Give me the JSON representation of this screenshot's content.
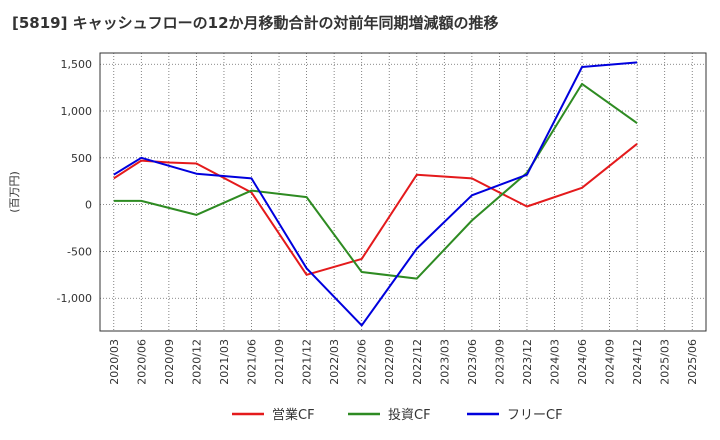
{
  "chart_data": {
    "type": "line",
    "title": "[5819]  キャッシュフローの12か月移動合計の対前年同期増減額の推移",
    "ylabel": "(百万円)",
    "xlabel": "",
    "ylim": [
      -1350,
      1620
    ],
    "yticks": [
      1500,
      1000,
      500,
      0,
      -500,
      -1000
    ],
    "ytick_labels": [
      "1,500",
      "1,000",
      "500",
      "0",
      "-500",
      "-1,000"
    ],
    "categories": [
      "2020/03",
      "2020/06",
      "2020/09",
      "2020/12",
      "2021/03",
      "2021/06",
      "2021/09",
      "2021/12",
      "2022/03",
      "2022/06",
      "2022/09",
      "2022/12",
      "2023/03",
      "2023/06",
      "2023/09",
      "2023/12",
      "2024/03",
      "2024/06",
      "2024/09",
      "2024/12",
      "2025/03",
      "2025/06"
    ],
    "grid": true,
    "legend_position": "bottom",
    "series": [
      {
        "name": "営業CF",
        "color": "#e41a1c",
        "values": [
          280,
          470,
          450,
          440,
          null,
          130,
          null,
          -750,
          null,
          -580,
          null,
          320,
          null,
          280,
          null,
          -20,
          null,
          180,
          null,
          650,
          null,
          null
        ]
      },
      {
        "name": "投資CF",
        "color": "#2e8b22",
        "values": [
          40,
          40,
          null,
          -110,
          null,
          150,
          null,
          80,
          null,
          -720,
          null,
          -790,
          null,
          -170,
          null,
          340,
          null,
          1290,
          null,
          870,
          null,
          null
        ]
      },
      {
        "name": "フリーCF",
        "color": "#0000dd",
        "values": [
          320,
          500,
          null,
          330,
          null,
          280,
          null,
          -680,
          null,
          -1290,
          null,
          -470,
          null,
          100,
          null,
          320,
          null,
          1470,
          null,
          1520,
          null,
          null
        ]
      }
    ]
  }
}
